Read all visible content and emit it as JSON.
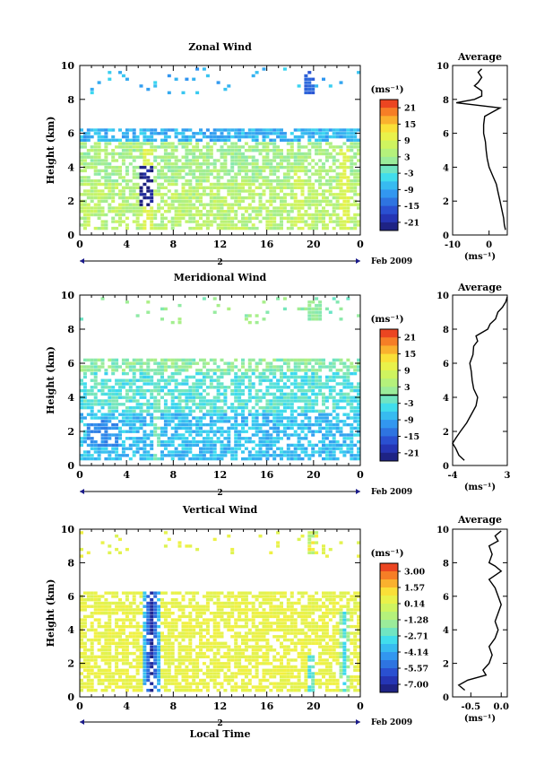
{
  "chart_data": [
    {
      "type": "heatmap",
      "title": "Zonal Wind",
      "ylabel": "Height (km)",
      "ylim": [
        0,
        10
      ],
      "yticks": [
        "0",
        "2",
        "4",
        "6",
        "8",
        "10"
      ],
      "xlim": [
        0,
        24
      ],
      "xticks": [
        "0",
        "4",
        "8",
        "12",
        "16",
        "20",
        "0"
      ],
      "date_day": "2",
      "date_label": "Feb 2009",
      "colorbar": {
        "unit": "(ms⁻¹)",
        "ticks": [
          "21",
          "15",
          "9",
          "3",
          "-3",
          "-9",
          "-15",
          "-21"
        ],
        "range": [
          -24,
          24
        ],
        "zero_line": true
      },
      "field": {
        "lower_base": 5,
        "mid_base": 3,
        "upper_base": -8,
        "spikes": [
          {
            "x": 5.7,
            "value": 9,
            "z_top": 5.0
          },
          {
            "x": 22.5,
            "value": 9,
            "z_top": 5.0
          },
          {
            "x": 18.6,
            "value": 8,
            "z_top": 4.0
          }
        ],
        "low_patch": {
          "x": [
            5.0,
            6.0
          ],
          "z": [
            1.5,
            4.0
          ],
          "value": -22
        },
        "upper_blob": {
          "x": [
            19.2,
            20.0
          ],
          "z": [
            8.3,
            9.6
          ],
          "value": -15
        }
      },
      "profile": {
        "title": "Average",
        "xlim": [
          -10,
          5
        ],
        "xticks": [
          "-10",
          "0"
        ],
        "xlabel": "(ms⁻¹)",
        "ylim": [
          0,
          10
        ],
        "yticks": [
          "0",
          "2",
          "4",
          "6",
          "8",
          "10"
        ],
        "z": [
          0.3,
          0.6,
          1.0,
          1.5,
          2.0,
          2.5,
          3.0,
          3.5,
          4.0,
          4.5,
          5.0,
          5.5,
          6.0,
          6.5,
          7.0,
          7.5,
          7.8,
          8.0,
          8.2,
          8.5,
          8.8,
          9.0,
          9.3,
          9.6,
          9.8
        ],
        "v": [
          4.5,
          4.2,
          4.0,
          3.5,
          3.0,
          2.5,
          2.0,
          1.0,
          0.0,
          -0.5,
          -0.8,
          -1.0,
          -1.5,
          -1.5,
          -1.2,
          3.0,
          -9.0,
          -4.0,
          -2.0,
          -2.0,
          -4.0,
          -3.0,
          -2.0,
          -3.0,
          -2.0
        ]
      }
    },
    {
      "type": "heatmap",
      "title": "Meridional Wind",
      "ylabel": "Height (km)",
      "ylim": [
        0,
        10
      ],
      "yticks": [
        "0",
        "2",
        "4",
        "6",
        "8",
        "10"
      ],
      "xlim": [
        0,
        24
      ],
      "xticks": [
        "0",
        "4",
        "8",
        "12",
        "16",
        "20",
        "0"
      ],
      "date_day": "2",
      "date_label": "Feb 2009",
      "colorbar": {
        "unit": "(ms⁻¹)",
        "ticks": [
          "21",
          "15",
          "9",
          "3",
          "-3",
          "-9",
          "-15",
          "-21"
        ],
        "range": [
          -24,
          24
        ],
        "zero_line": true
      },
      "field": {
        "lower_base": -7,
        "mid_base": -3,
        "upper_base": 1,
        "spikes": [
          {
            "x": 6.5,
            "value": -1,
            "z_top": 6.0
          }
        ],
        "low_patch": {
          "x": [
            0.5,
            3.0
          ],
          "z": [
            1.0,
            2.5
          ],
          "value": -11
        },
        "upper_blob": {
          "x": [
            19.3,
            20.5
          ],
          "z": [
            8.4,
            9.6
          ],
          "value": 1
        }
      },
      "profile": {
        "title": "Average",
        "xlim": [
          -4,
          3
        ],
        "xticks": [
          "-4",
          "3"
        ],
        "xlabel": "(ms⁻¹)",
        "ylim": [
          0,
          10
        ],
        "yticks": [
          "0",
          "2",
          "4",
          "6",
          "8",
          "10"
        ],
        "z": [
          0.3,
          0.6,
          1.0,
          1.3,
          1.6,
          2.0,
          2.5,
          3.0,
          3.5,
          4.0,
          4.5,
          5.0,
          5.5,
          6.0,
          6.5,
          7.0,
          7.3,
          7.6,
          8.0,
          8.3,
          8.6,
          9.0,
          9.3,
          9.6,
          9.9
        ],
        "v": [
          -2.5,
          -3.2,
          -3.6,
          -4.0,
          -3.6,
          -3.0,
          -2.2,
          -1.6,
          -1.0,
          -0.8,
          -1.3,
          -1.5,
          -1.6,
          -1.8,
          -1.4,
          -1.3,
          -0.8,
          -1.0,
          0.5,
          0.8,
          1.5,
          1.8,
          2.4,
          2.8,
          3.0
        ]
      }
    },
    {
      "type": "heatmap",
      "title": "Vertical Wind",
      "ylabel": "Height (km)",
      "xlabel": "Local Time",
      "ylim": [
        0,
        10
      ],
      "yticks": [
        "0",
        "2",
        "4",
        "6",
        "8",
        "10"
      ],
      "xlim": [
        0,
        24
      ],
      "xticks": [
        "0",
        "4",
        "8",
        "12",
        "16",
        "20",
        "0"
      ],
      "date_day": "2",
      "date_label": "Feb 2009",
      "colorbar": {
        "unit": "(ms⁻¹)",
        "ticks": [
          "3.00",
          "1.57",
          "0.14",
          "-1.28",
          "-2.71",
          "-4.14",
          "-5.57",
          "-7.00"
        ],
        "range": [
          -7.71,
          3.71
        ],
        "zero_line": false
      },
      "field": {
        "lower_base": 0.5,
        "mid_base": 0.5,
        "upper_base": 0.4,
        "plumes": [
          {
            "x": 6.0,
            "z_top": 6.8,
            "width": 0.8,
            "min": -7.0
          },
          {
            "x": 19.6,
            "z_top": 2.5,
            "width": 0.35,
            "min": -3.5
          },
          {
            "x": 22.5,
            "z_top": 5.0,
            "width": 0.35,
            "min": -3.0
          }
        ],
        "upper_blob": {
          "x": [
            19.3,
            20.2
          ],
          "z": [
            8.5,
            9.8
          ],
          "value": -0.2
        }
      },
      "profile": {
        "title": "Average",
        "xlim": [
          -0.8,
          0.1
        ],
        "xticks": [
          "-0.5",
          "0.0"
        ],
        "xtick_values": [
          -0.5,
          0.0
        ],
        "xlabel": "(ms⁻¹)",
        "ylim": [
          0,
          10
        ],
        "yticks": [
          "0",
          "2",
          "4",
          "6",
          "8",
          "10"
        ],
        "z": [
          0.4,
          0.7,
          1.0,
          1.3,
          1.6,
          2.0,
          2.5,
          3.0,
          3.5,
          4.0,
          4.5,
          5.0,
          5.5,
          6.0,
          6.5,
          7.0,
          7.5,
          7.8,
          8.0,
          8.5,
          9.0,
          9.3,
          9.6,
          9.9
        ],
        "v": [
          -0.6,
          -0.7,
          -0.55,
          -0.25,
          -0.3,
          -0.2,
          -0.15,
          -0.2,
          -0.1,
          -0.05,
          -0.1,
          -0.05,
          0.0,
          -0.05,
          -0.1,
          -0.2,
          0.0,
          -0.1,
          -0.2,
          -0.15,
          -0.2,
          -0.05,
          -0.1,
          0.0
        ]
      }
    }
  ]
}
